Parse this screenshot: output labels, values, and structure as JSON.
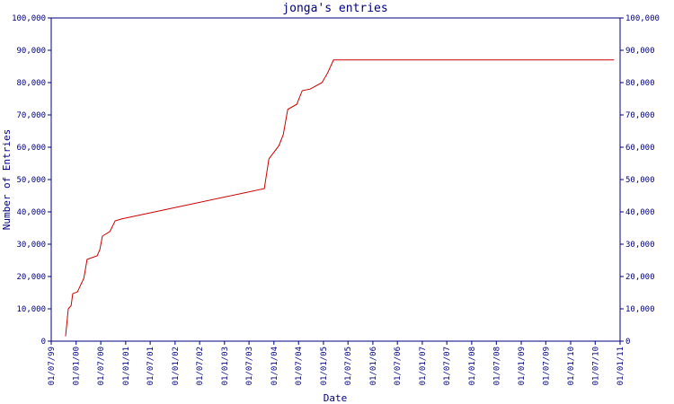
{
  "chart_data": {
    "type": "line",
    "title": "jonga's entries",
    "x_label": "Date",
    "y_label": "Number of Entries",
    "x": [
      "1999-10-15",
      "1999-11-04",
      "1999-11-25",
      "1999-12-07",
      "2000-01-10",
      "2000-02-27",
      "2000-03-22",
      "2000-06-04",
      "2000-06-24",
      "2000-07-13",
      "2000-09-06",
      "2000-10-15",
      "2000-12-01",
      "2003-10-22",
      "2003-11-25",
      "2004-02-07",
      "2004-03-10",
      "2004-04-12",
      "2004-06-18",
      "2004-07-28",
      "2004-09-25",
      "2004-12-21",
      "2005-02-01",
      "2005-03-16",
      "2010-11-18"
    ],
    "series": [
      {
        "name": "Entries",
        "color": "#cc0000",
        "values": [
          1500,
          10000,
          11000,
          14700,
          15200,
          19500,
          25300,
          26400,
          28300,
          32500,
          33900,
          37200,
          37800,
          47200,
          56400,
          60500,
          63900,
          71700,
          73300,
          77500,
          78000,
          80000,
          83000,
          87000,
          87000
        ]
      }
    ],
    "xlim": [
      "1999-07-01",
      "2011-01-01"
    ],
    "xticks": [
      {
        "value": "1999-07-01",
        "label": "01/07/99"
      },
      {
        "value": "2000-01-01",
        "label": "01/01/00"
      },
      {
        "value": "2000-07-01",
        "label": "01/07/00"
      },
      {
        "value": "2001-01-01",
        "label": "01/01/01"
      },
      {
        "value": "2001-07-01",
        "label": "01/07/01"
      },
      {
        "value": "2002-01-01",
        "label": "01/01/02"
      },
      {
        "value": "2002-07-01",
        "label": "01/07/02"
      },
      {
        "value": "2003-01-01",
        "label": "01/01/03"
      },
      {
        "value": "2003-07-01",
        "label": "01/07/03"
      },
      {
        "value": "2004-01-01",
        "label": "01/01/04"
      },
      {
        "value": "2004-07-01",
        "label": "01/07/04"
      },
      {
        "value": "2005-01-01",
        "label": "01/01/05"
      },
      {
        "value": "2005-07-01",
        "label": "01/07/05"
      },
      {
        "value": "2006-01-01",
        "label": "01/01/06"
      },
      {
        "value": "2006-07-01",
        "label": "01/07/06"
      },
      {
        "value": "2007-01-01",
        "label": "01/01/07"
      },
      {
        "value": "2007-07-01",
        "label": "01/07/07"
      },
      {
        "value": "2008-01-01",
        "label": "01/01/08"
      },
      {
        "value": "2008-07-01",
        "label": "01/07/08"
      },
      {
        "value": "2009-01-01",
        "label": "01/01/09"
      },
      {
        "value": "2009-07-01",
        "label": "01/07/09"
      },
      {
        "value": "2010-01-01",
        "label": "01/01/10"
      },
      {
        "value": "2010-07-01",
        "label": "01/07/10"
      },
      {
        "value": "2011-01-01",
        "label": "01/01/11"
      }
    ],
    "ylim": [
      0,
      100000
    ],
    "yticks": [
      0,
      {
        "value": 10000,
        "label": "10,000"
      },
      {
        "value": 20000,
        "label": "20,000"
      },
      {
        "value": 30000,
        "label": "30,000"
      },
      {
        "value": 40000,
        "label": "40,000"
      },
      {
        "value": 50000,
        "label": "50,000"
      },
      {
        "value": 60000,
        "label": "60,000"
      },
      {
        "value": 70000,
        "label": "70,000"
      },
      {
        "value": 80000,
        "label": "80,000"
      },
      {
        "value": 90000,
        "label": "90,000"
      },
      {
        "value": 100000,
        "label": "100,000"
      }
    ],
    "grid": false
  }
}
